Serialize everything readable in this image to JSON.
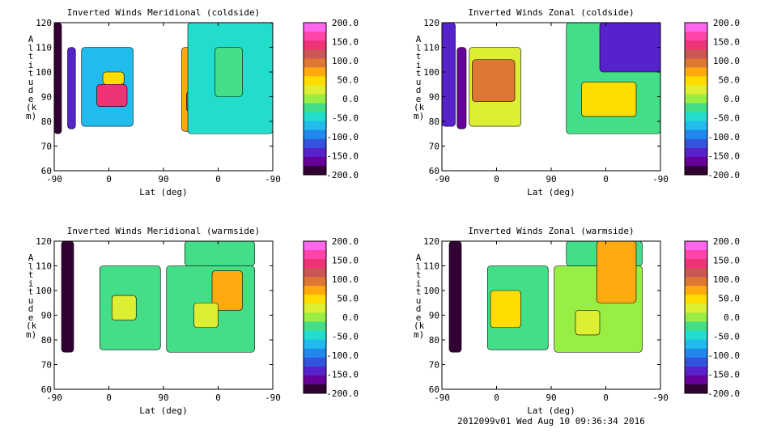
{
  "footer": "2012099v01 Wed Aug 10 09:36:34 2016",
  "colorbar": {
    "levels": [
      200.0,
      175,
      150.0,
      125,
      100.0,
      75,
      50.0,
      25,
      0.0,
      -25,
      -50.0,
      -75,
      -100.0,
      -125,
      -150.0,
      -175,
      -200.0
    ],
    "labels": [
      "200.0",
      "150.0",
      "100.0",
      "50.0",
      "0.0",
      "-50.0",
      "-100.0",
      "-150.0",
      "-200.0"
    ],
    "colors": [
      "#ff66ee",
      "#ff44aa",
      "#ee3377",
      "#cc5555",
      "#dd7733",
      "#ffaa11",
      "#ffdd00",
      "#ddee33",
      "#99ee44",
      "#44dd88",
      "#22ddcc",
      "#22bbee",
      "#2288ee",
      "#3355dd",
      "#5522cc",
      "#660099",
      "#330033"
    ]
  },
  "chart_data": [
    {
      "type": "heatmap",
      "title": "Inverted Winds Meridional (coldside)",
      "xlabel": "Lat (deg)",
      "ylabel": "Altitude (km)",
      "xticks": [
        "-90",
        "0",
        "90",
        "0",
        "-90"
      ],
      "ylim": [
        60,
        120
      ],
      "yticks": [
        60,
        70,
        80,
        90,
        100,
        110,
        120
      ],
      "zlim": [
        -200,
        200
      ],
      "blocks": [
        {
          "x": [
            -90,
            -78
          ],
          "y": [
            75,
            120
          ],
          "v": -200
        },
        {
          "x": [
            -68,
            -55
          ],
          "y": [
            77,
            110
          ],
          "v": -150
        },
        {
          "x": [
            -45,
            40
          ],
          "y": [
            78,
            110
          ],
          "v": -60
        },
        {
          "x": [
            -20,
            30
          ],
          "y": [
            86,
            95
          ],
          "v": 170
        },
        {
          "x": [
            -10,
            25
          ],
          "y": [
            95,
            100
          ],
          "v": 50
        },
        {
          "x": [
            120,
            160
          ],
          "y": [
            76,
            110
          ],
          "v": 80
        },
        {
          "x": [
            128,
            135
          ],
          "y": [
            84,
            92
          ],
          "v": 150
        },
        {
          "x": [
            130,
            270
          ],
          "y": [
            75,
            120
          ],
          "v": -50
        },
        {
          "x": [
            175,
            220
          ],
          "y": [
            90,
            110
          ],
          "v": -10
        }
      ]
    },
    {
      "type": "heatmap",
      "title": "Inverted Winds Zonal (coldside)",
      "xlabel": "Lat (deg)",
      "ylabel": "Altitude (km)",
      "xticks": [
        "-90",
        "0",
        "90",
        "0",
        "-90"
      ],
      "ylim": [
        60,
        120
      ],
      "yticks": [
        60,
        70,
        80,
        90,
        100,
        110,
        120
      ],
      "zlim": [
        -200,
        200
      ],
      "blocks": [
        {
          "x": [
            -90,
            -68
          ],
          "y": [
            78,
            120
          ],
          "v": -150
        },
        {
          "x": [
            -65,
            -50
          ],
          "y": [
            77,
            110
          ],
          "v": -170
        },
        {
          "x": [
            -45,
            40
          ],
          "y": [
            78,
            110
          ],
          "v": 30
        },
        {
          "x": [
            -40,
            30
          ],
          "y": [
            88,
            105
          ],
          "v": 100
        },
        {
          "x": [
            115,
            270
          ],
          "y": [
            75,
            120
          ],
          "v": -20
        },
        {
          "x": [
            170,
            270
          ],
          "y": [
            100,
            120
          ],
          "v": -130
        },
        {
          "x": [
            140,
            230
          ],
          "y": [
            82,
            96
          ],
          "v": 50
        }
      ]
    },
    {
      "type": "heatmap",
      "title": "Inverted Winds Meridional (warmside)",
      "xlabel": "Lat (deg)",
      "ylabel": "Altitude (km)",
      "xticks": [
        "-90",
        "0",
        "90",
        "0",
        "-90"
      ],
      "ylim": [
        60,
        120
      ],
      "yticks": [
        60,
        70,
        80,
        90,
        100,
        110,
        120
      ],
      "zlim": [
        -200,
        200
      ],
      "blocks": [
        {
          "x": [
            -78,
            -58
          ],
          "y": [
            75,
            120
          ],
          "v": -200
        },
        {
          "x": [
            -15,
            85
          ],
          "y": [
            76,
            110
          ],
          "v": -20
        },
        {
          "x": [
            5,
            45
          ],
          "y": [
            88,
            98
          ],
          "v": 30
        },
        {
          "x": [
            95,
            240
          ],
          "y": [
            75,
            110
          ],
          "v": -10
        },
        {
          "x": [
            125,
            240
          ],
          "y": [
            110,
            120
          ],
          "v": -10
        },
        {
          "x": [
            170,
            220
          ],
          "y": [
            92,
            108
          ],
          "v": 80
        },
        {
          "x": [
            140,
            180
          ],
          "y": [
            85,
            95
          ],
          "v": 40
        }
      ]
    },
    {
      "type": "heatmap",
      "title": "Inverted Winds Zonal (warmside)",
      "xlabel": "Lat (deg)",
      "ylabel": "Altitude (km)",
      "xticks": [
        "-90",
        "0",
        "90",
        "0",
        "-90"
      ],
      "ylim": [
        60,
        120
      ],
      "yticks": [
        60,
        70,
        80,
        90,
        100,
        110,
        120
      ],
      "zlim": [
        -200,
        200
      ],
      "blocks": [
        {
          "x": [
            -78,
            -58
          ],
          "y": [
            75,
            120
          ],
          "v": -200
        },
        {
          "x": [
            -15,
            85
          ],
          "y": [
            76,
            110
          ],
          "v": -20
        },
        {
          "x": [
            -10,
            40
          ],
          "y": [
            85,
            100
          ],
          "v": 60
        },
        {
          "x": [
            95,
            240
          ],
          "y": [
            75,
            110
          ],
          "v": 0
        },
        {
          "x": [
            115,
            240
          ],
          "y": [
            110,
            120
          ],
          "v": -10
        },
        {
          "x": [
            165,
            230
          ],
          "y": [
            95,
            120
          ],
          "v": 90
        },
        {
          "x": [
            130,
            170
          ],
          "y": [
            82,
            92
          ],
          "v": 40
        }
      ]
    }
  ]
}
